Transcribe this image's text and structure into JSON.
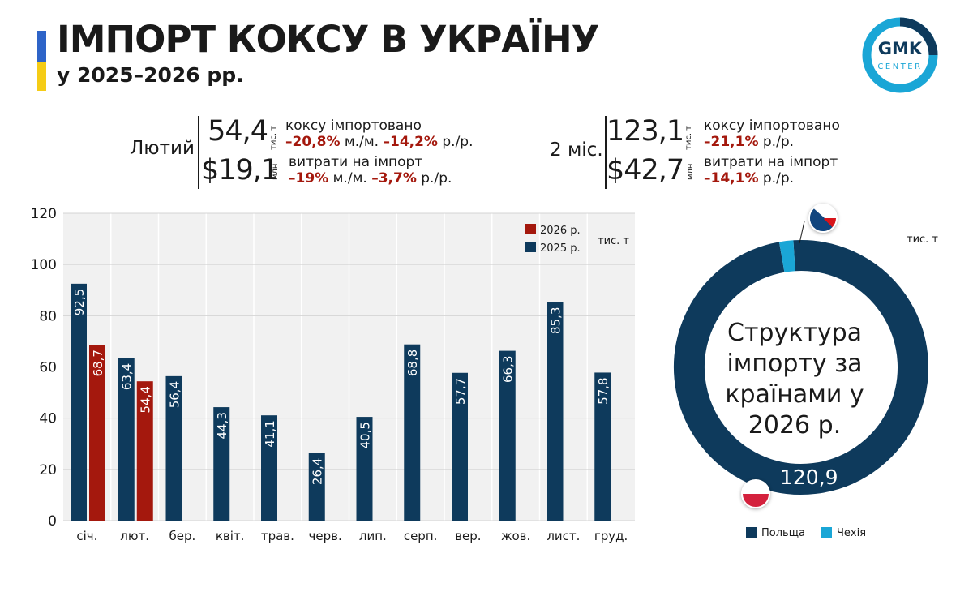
{
  "header": {
    "title": "ІМПОРТ КОКСУ В УКРАЇНУ",
    "subtitle": "у 2025–2026 рр.",
    "logo_text": "GMK",
    "logo_sub": "CENTER"
  },
  "colors": {
    "y2026": "#a4180d",
    "y2025": "#0e3a5c",
    "poland": "#0e3a5c",
    "czech": "#1aa6d6",
    "negative_change": "#a4180d"
  },
  "kpi_feb": {
    "label": "Лютий",
    "volume": "54,4",
    "volume_unit": "тис. т",
    "volume_desc": "коксу імпортовано",
    "volume_mom": "–20,8%",
    "volume_mom_suffix": "м./м.",
    "volume_yoy": "–14,2%",
    "volume_yoy_suffix": "р./р.",
    "cost": "$19,1",
    "cost_unit": "млн",
    "cost_desc": "витрати на імпорт",
    "cost_mom": "–19%",
    "cost_mom_suffix": "м./м.",
    "cost_yoy": "–3,7%",
    "cost_yoy_suffix": "р./р."
  },
  "kpi_2m": {
    "label": "2 міс.",
    "volume": "123,1",
    "volume_unit": "тис. т",
    "volume_desc": "коксу імпортовано",
    "volume_yoy": "–21,1%",
    "volume_yoy_suffix": "р./р.",
    "cost": "$42,7",
    "cost_unit": "млн",
    "cost_desc": "витрати на імпорт",
    "cost_yoy": "–14,1%",
    "cost_yoy_suffix": "р./р."
  },
  "chart_data": [
    {
      "type": "bar",
      "unit": "тис. т",
      "categories": [
        "січ.",
        "лют.",
        "бер.",
        "квіт.",
        "трав.",
        "черв.",
        "лип.",
        "серп.",
        "вер.",
        "жов.",
        "лист.",
        "груд."
      ],
      "series": [
        {
          "name": "2025 р.",
          "values": [
            92.5,
            63.4,
            56.4,
            44.3,
            41.1,
            26.4,
            40.5,
            68.8,
            57.7,
            66.3,
            85.3,
            57.8
          ],
          "labels": [
            "92,5",
            "63,4",
            "56,4",
            "44,3",
            "41,1",
            "26,4",
            "40,5",
            "68,8",
            "57,7",
            "66,3",
            "85,3",
            "57,8"
          ]
        },
        {
          "name": "2026 р.",
          "values": [
            68.7,
            54.4,
            null,
            null,
            null,
            null,
            null,
            null,
            null,
            null,
            null,
            null
          ],
          "labels": [
            "68,7",
            "54,4",
            null,
            null,
            null,
            null,
            null,
            null,
            null,
            null,
            null,
            null
          ]
        }
      ],
      "ylim": [
        0,
        120
      ],
      "yticks": [
        0,
        20,
        40,
        60,
        80,
        100,
        120
      ],
      "grid": true,
      "legend_position": "top-right"
    },
    {
      "type": "pie",
      "title": "Структура імпорту за країнами у 2026 р.",
      "unit": "тис. т",
      "slices": [
        {
          "name": "Польща",
          "value": 120.9,
          "label": "120,9"
        },
        {
          "name": "Чехія",
          "value": 2.2
        }
      ],
      "legend_position": "bottom"
    }
  ]
}
